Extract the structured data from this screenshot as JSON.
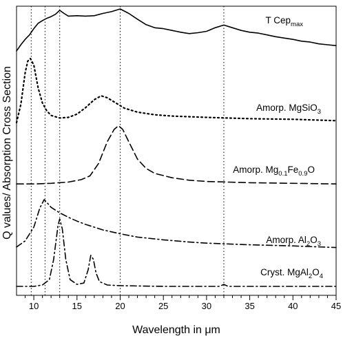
{
  "chart_data": {
    "type": "line",
    "xlabel": "Wavelength in μm",
    "ylabel": "Q values/ Absorption Cross Section",
    "xlim": [
      8,
      45
    ],
    "x_ticks": [
      10,
      15,
      20,
      25,
      30,
      35,
      40,
      45
    ],
    "grid": false,
    "reference_lines_x": [
      9.7,
      11.3,
      13.0,
      20.0,
      32.0
    ],
    "series": [
      {
        "name": "T Cep",
        "name_sub": "max",
        "style": "solid",
        "points": [
          [
            8.0,
            0.06
          ],
          [
            8.5,
            0.2
          ],
          [
            9.0,
            0.32
          ],
          [
            9.5,
            0.42
          ],
          [
            10.0,
            0.56
          ],
          [
            10.5,
            0.68
          ],
          [
            11.0,
            0.74
          ],
          [
            11.5,
            0.79
          ],
          [
            12.0,
            0.83
          ],
          [
            12.5,
            0.88
          ],
          [
            13.0,
            0.97
          ],
          [
            13.5,
            0.9
          ],
          [
            14.0,
            0.84
          ],
          [
            15.0,
            0.85
          ],
          [
            16.0,
            0.84
          ],
          [
            17.0,
            0.85
          ],
          [
            18.0,
            0.9
          ],
          [
            19.0,
            0.94
          ],
          [
            20.0,
            1.0
          ],
          [
            21.0,
            0.9
          ],
          [
            22.0,
            0.77
          ],
          [
            23.0,
            0.65
          ],
          [
            24.0,
            0.58
          ],
          [
            25.0,
            0.56
          ],
          [
            26.0,
            0.52
          ],
          [
            27.0,
            0.48
          ],
          [
            28.0,
            0.45
          ],
          [
            29.0,
            0.47
          ],
          [
            30.0,
            0.5
          ],
          [
            31.0,
            0.58
          ],
          [
            32.0,
            0.64
          ],
          [
            33.0,
            0.58
          ],
          [
            34.0,
            0.52
          ],
          [
            35.0,
            0.48
          ],
          [
            36.0,
            0.46
          ],
          [
            37.0,
            0.42
          ],
          [
            38.0,
            0.38
          ],
          [
            39.0,
            0.35
          ],
          [
            40.0,
            0.32
          ],
          [
            41.0,
            0.28
          ],
          [
            42.0,
            0.26
          ],
          [
            43.0,
            0.22
          ],
          [
            44.0,
            0.2
          ],
          [
            45.0,
            0.18
          ]
        ]
      },
      {
        "name": "Amorp. MgSiO",
        "name_sub": "3",
        "style": "dotted",
        "points": [
          [
            8.0,
            0.02
          ],
          [
            8.5,
            0.3
          ],
          [
            9.0,
            0.78
          ],
          [
            9.3,
            0.96
          ],
          [
            9.6,
            1.0
          ],
          [
            10.0,
            0.9
          ],
          [
            10.5,
            0.55
          ],
          [
            11.0,
            0.32
          ],
          [
            11.5,
            0.2
          ],
          [
            12.0,
            0.13
          ],
          [
            13.0,
            0.09
          ],
          [
            14.0,
            0.1
          ],
          [
            15.0,
            0.15
          ],
          [
            16.0,
            0.25
          ],
          [
            17.0,
            0.37
          ],
          [
            17.8,
            0.43
          ],
          [
            18.5,
            0.4
          ],
          [
            19.5,
            0.32
          ],
          [
            20.5,
            0.24
          ],
          [
            22.0,
            0.18
          ],
          [
            24.0,
            0.14
          ],
          [
            26.0,
            0.12
          ],
          [
            30.0,
            0.1
          ],
          [
            35.0,
            0.08
          ],
          [
            40.0,
            0.07
          ],
          [
            45.0,
            0.05
          ]
        ]
      },
      {
        "name": "Amorp. Mg",
        "name_sub": "0.1",
        "name_mid": "Fe",
        "name_sub2": "0.9",
        "name_end": "O",
        "style": "dashed",
        "points": [
          [
            8.0,
            0.02
          ],
          [
            10.0,
            0.02
          ],
          [
            12.0,
            0.03
          ],
          [
            14.0,
            0.05
          ],
          [
            15.5,
            0.09
          ],
          [
            16.5,
            0.15
          ],
          [
            17.5,
            0.35
          ],
          [
            18.5,
            0.7
          ],
          [
            19.3,
            0.9
          ],
          [
            19.8,
            0.96
          ],
          [
            20.3,
            0.9
          ],
          [
            21.0,
            0.7
          ],
          [
            22.0,
            0.42
          ],
          [
            23.0,
            0.27
          ],
          [
            24.0,
            0.19
          ],
          [
            26.0,
            0.12
          ],
          [
            28.0,
            0.08
          ],
          [
            30.0,
            0.06
          ],
          [
            35.0,
            0.04
          ],
          [
            40.0,
            0.03
          ],
          [
            45.0,
            0.02
          ]
        ]
      },
      {
        "name": "Amorp. Al",
        "name_sub": "2",
        "name_end": "O",
        "name_sub2": "3",
        "style": "dash-dot",
        "points": [
          [
            8.0,
            0.04
          ],
          [
            9.0,
            0.15
          ],
          [
            10.0,
            0.4
          ],
          [
            10.7,
            0.75
          ],
          [
            11.2,
            0.9
          ],
          [
            11.5,
            0.85
          ],
          [
            12.0,
            0.76
          ],
          [
            13.0,
            0.66
          ],
          [
            14.0,
            0.58
          ],
          [
            15.0,
            0.51
          ],
          [
            16.0,
            0.45
          ],
          [
            17.0,
            0.4
          ],
          [
            18.0,
            0.35
          ],
          [
            20.0,
            0.28
          ],
          [
            22.0,
            0.22
          ],
          [
            25.0,
            0.17
          ],
          [
            28.0,
            0.13
          ],
          [
            30.0,
            0.11
          ],
          [
            35.0,
            0.08
          ],
          [
            40.0,
            0.06
          ],
          [
            45.0,
            0.03
          ]
        ]
      },
      {
        "name": "Cryst. MgAl",
        "name_sub": "2",
        "name_end": "O",
        "name_sub2": "4",
        "style": "dash-dot",
        "points": [
          [
            8.0,
            0.0
          ],
          [
            10.0,
            0.0
          ],
          [
            11.0,
            0.02
          ],
          [
            11.8,
            0.1
          ],
          [
            12.3,
            0.4
          ],
          [
            12.8,
            0.9
          ],
          [
            13.0,
            1.0
          ],
          [
            13.3,
            0.85
          ],
          [
            13.7,
            0.4
          ],
          [
            14.2,
            0.1
          ],
          [
            15.0,
            0.03
          ],
          [
            15.8,
            0.05
          ],
          [
            16.3,
            0.25
          ],
          [
            16.6,
            0.46
          ],
          [
            16.9,
            0.4
          ],
          [
            17.2,
            0.2
          ],
          [
            17.6,
            0.07
          ],
          [
            18.5,
            0.02
          ],
          [
            20.0,
            0.01
          ],
          [
            25.0,
            0.0
          ],
          [
            31.5,
            0.0
          ],
          [
            32.0,
            0.03
          ],
          [
            32.5,
            0.0
          ],
          [
            45.0,
            0.0
          ]
        ]
      }
    ]
  }
}
